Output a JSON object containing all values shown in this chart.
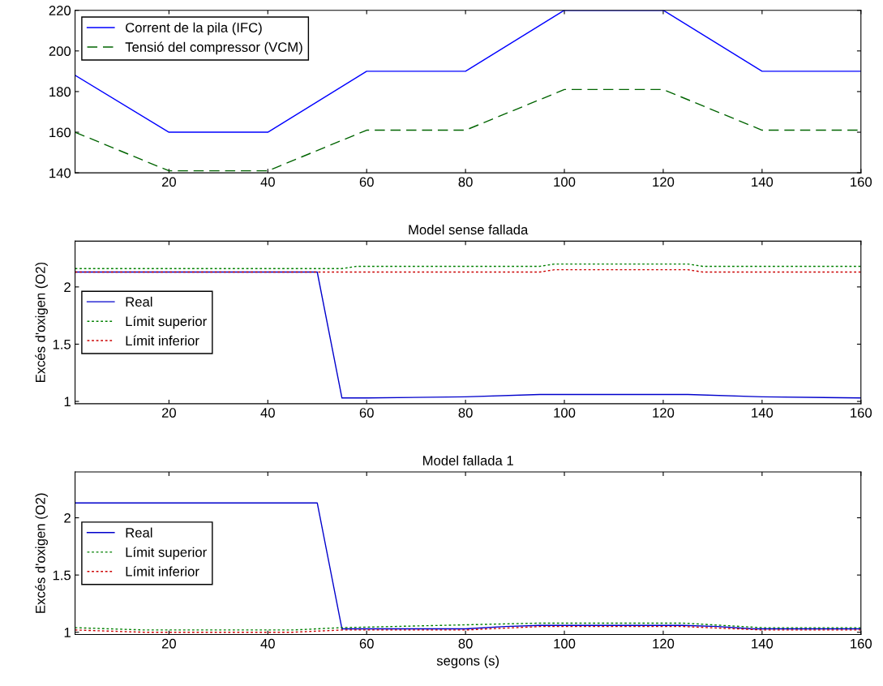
{
  "chart_data": [
    {
      "type": "line",
      "xlim": [
        1,
        160
      ],
      "xticks": [
        20,
        40,
        60,
        80,
        100,
        120,
        140,
        160
      ],
      "ylim": [
        140,
        220
      ],
      "yticks": [
        140,
        160,
        180,
        200,
        220
      ],
      "grid": false,
      "legend": "top left",
      "marker": "none",
      "series": [
        {
          "name": "Corrent de la pila (IFC)",
          "color": "#0000ff",
          "line_style": "solid",
          "x": [
            1,
            20,
            40,
            60,
            80,
            100,
            120,
            140,
            160
          ],
          "values": [
            188,
            160,
            160,
            190,
            190,
            220,
            220,
            190,
            190
          ]
        },
        {
          "name": "Tensió del compressor (VCM)",
          "color": "#006400",
          "line_style": "dashed",
          "x": [
            1,
            20,
            40,
            60,
            80,
            100,
            120,
            140,
            160
          ],
          "values": [
            160,
            141,
            141,
            161,
            161,
            181,
            181,
            161,
            161
          ]
        }
      ]
    },
    {
      "type": "line",
      "title": "Model sense fallada",
      "ylabel": "Excés d'oxigen (O2)",
      "xlim": [
        1,
        160
      ],
      "xticks": [
        20,
        40,
        60,
        80,
        100,
        120,
        140,
        160
      ],
      "ylim": [
        0.98,
        2.4
      ],
      "yticks": [
        1,
        1.5,
        2
      ],
      "grid": false,
      "legend": "left",
      "marker": "none",
      "series": [
        {
          "name": "Real",
          "color": "#0000cc",
          "line_style": "solid",
          "x": [
            1,
            50,
            55,
            60,
            80,
            95,
            125,
            140,
            160
          ],
          "values": [
            2.13,
            2.13,
            1.03,
            1.03,
            1.04,
            1.06,
            1.06,
            1.04,
            1.03
          ]
        },
        {
          "name": "Límit superior",
          "color": "#008000",
          "line_style": "dotted",
          "x": [
            1,
            55,
            58,
            95,
            98,
            125,
            128,
            160
          ],
          "values": [
            2.16,
            2.16,
            2.18,
            2.18,
            2.2,
            2.2,
            2.18,
            2.18
          ]
        },
        {
          "name": "Límit inferior",
          "color": "#cc0000",
          "line_style": "dotted",
          "x": [
            1,
            95,
            98,
            125,
            128,
            160
          ],
          "values": [
            2.13,
            2.13,
            2.15,
            2.15,
            2.13,
            2.13
          ]
        }
      ]
    },
    {
      "type": "line",
      "title": "Model fallada 1",
      "ylabel": "Excés d'oxigen (O2)",
      "xlabel": "segons (s)",
      "xlim": [
        1,
        160
      ],
      "xticks": [
        20,
        40,
        60,
        80,
        100,
        120,
        140,
        160
      ],
      "ylim": [
        0.98,
        2.4
      ],
      "yticks": [
        1,
        1.5,
        2
      ],
      "grid": false,
      "legend": "left",
      "marker": "none",
      "series": [
        {
          "name": "Real",
          "color": "#0000cc",
          "line_style": "solid",
          "x": [
            1,
            50,
            55,
            80,
            88,
            95,
            124,
            131,
            138,
            160
          ],
          "values": [
            2.13,
            2.13,
            1.03,
            1.03,
            1.05,
            1.06,
            1.06,
            1.05,
            1.03,
            1.03
          ]
        },
        {
          "name": "Límit superior",
          "color": "#008000",
          "line_style": "dotted",
          "x": [
            1,
            15,
            45,
            55,
            95,
            124,
            140,
            160
          ],
          "values": [
            1.04,
            1.02,
            1.02,
            1.04,
            1.08,
            1.08,
            1.04,
            1.04
          ]
        },
        {
          "name": "Límit inferior",
          "color": "#cc0000",
          "line_style": "dotted",
          "x": [
            1,
            15,
            45,
            55,
            80,
            95,
            124,
            140,
            160
          ],
          "values": [
            1.02,
            1.0,
            1.0,
            1.02,
            1.02,
            1.05,
            1.05,
            1.02,
            1.02
          ]
        }
      ]
    }
  ]
}
